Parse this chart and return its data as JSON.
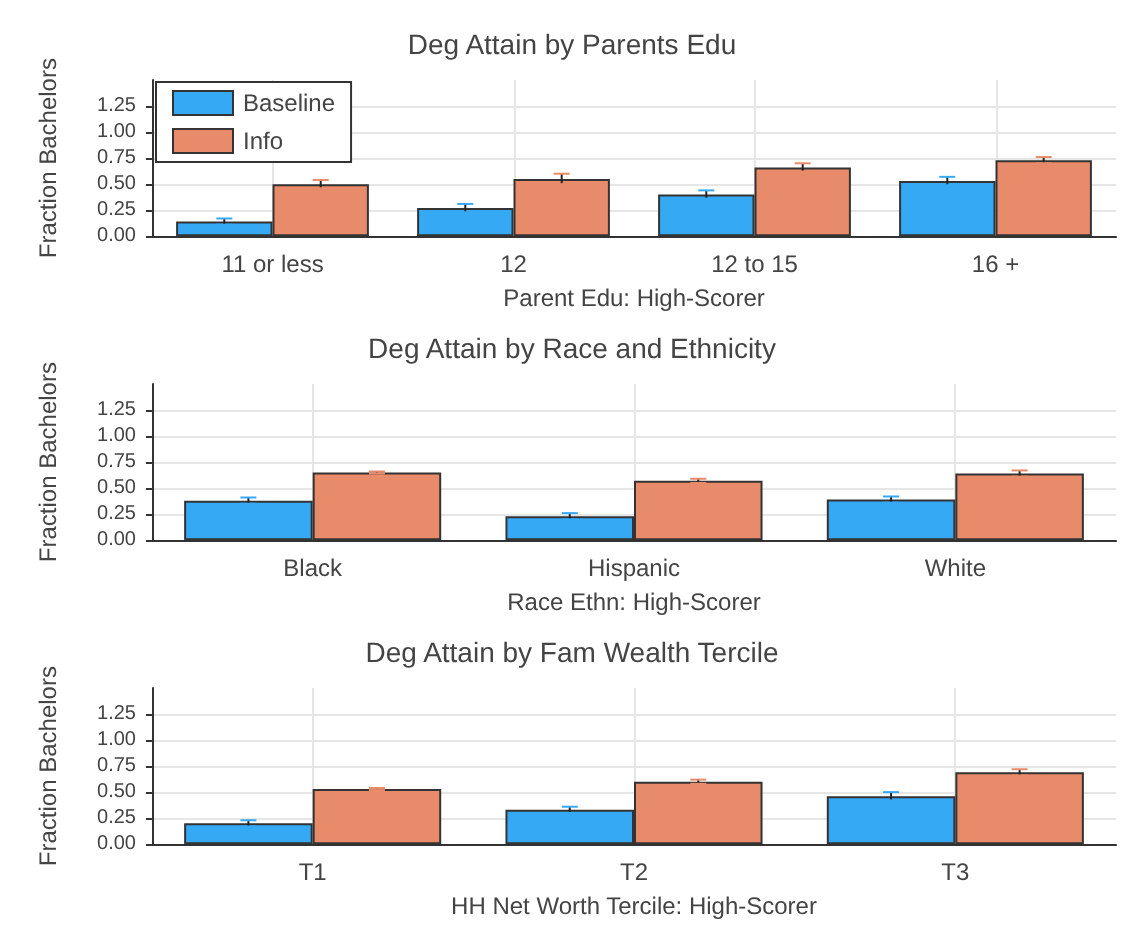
{
  "chart_data": [
    {
      "type": "bar",
      "title": "Deg Attain by Parents Edu",
      "xlabel": "Parent Edu: High-Scorer",
      "ylabel": "Fraction Bachelors",
      "categories": [
        "11 or less",
        "12",
        "12 to 15",
        "16 +"
      ],
      "series": [
        {
          "name": "Baseline",
          "color": "#36a9f5",
          "values": [
            0.14,
            0.27,
            0.4,
            0.53
          ],
          "errors": [
            0.03,
            0.04,
            0.04,
            0.04
          ]
        },
        {
          "name": "Info",
          "color": "#e88b6a",
          "values": [
            0.5,
            0.55,
            0.66,
            0.73
          ],
          "errors": [
            0.04,
            0.05,
            0.04,
            0.03
          ]
        }
      ],
      "ylim": [
        0,
        1.5
      ],
      "yticks": [
        {
          "value": 0,
          "label": "0.00"
        },
        {
          "value": 0.25,
          "label": "0.25"
        },
        {
          "value": 0.5,
          "label": "0.50"
        },
        {
          "value": 0.75,
          "label": "0.75"
        },
        {
          "value": 1,
          "label": "1.00"
        },
        {
          "value": 1.25,
          "label": "1.25"
        }
      ],
      "grid": true,
      "legend": "top left"
    },
    {
      "type": "bar",
      "title": "Deg Attain by Race and Ethnicity",
      "xlabel": "Race Ethn: High-Scorer",
      "ylabel": "Fraction Bachelors",
      "categories": [
        "Black",
        "Hispanic",
        "White"
      ],
      "series": [
        {
          "color": "#36a9f5",
          "values": [
            0.38,
            0.23,
            0.39
          ],
          "errors": [
            0.03,
            0.03,
            0.03
          ]
        },
        {
          "color": "#e88b6a",
          "values": [
            0.65,
            0.57,
            0.64
          ],
          "errors": [
            0.01,
            0.02,
            0.03
          ]
        }
      ],
      "ylim": [
        0,
        1.5
      ],
      "yticks": [
        {
          "value": 0,
          "label": "0.00"
        },
        {
          "value": 0.25,
          "label": "0.25"
        },
        {
          "value": 0.5,
          "label": "0.50"
        },
        {
          "value": 0.75,
          "label": "0.75"
        },
        {
          "value": 1,
          "label": "1.00"
        },
        {
          "value": 1.25,
          "label": "1.25"
        }
      ],
      "grid": true,
      "legend": false
    },
    {
      "type": "bar",
      "title": "Deg Attain by Fam Wealth Tercile",
      "xlabel": "HH Net Worth Tercile: High-Scorer",
      "ylabel": "Fraction Bachelors",
      "categories": [
        "T1",
        "T2",
        "T3"
      ],
      "series": [
        {
          "color": "#36a9f5",
          "values": [
            0.2,
            0.33,
            0.46
          ],
          "errors": [
            0.03,
            0.03,
            0.04
          ]
        },
        {
          "color": "#e88b6a",
          "values": [
            0.53,
            0.6,
            0.69
          ],
          "errors": [
            0.01,
            0.02,
            0.03
          ]
        }
      ],
      "ylim": [
        0,
        1.5
      ],
      "yticks": [
        {
          "value": 0,
          "label": "0.00"
        },
        {
          "value": 0.25,
          "label": "0.25"
        },
        {
          "value": 0.5,
          "label": "0.50"
        },
        {
          "value": 0.75,
          "label": "0.75"
        },
        {
          "value": 1,
          "label": "1.00"
        },
        {
          "value": 1.25,
          "label": "1.25"
        }
      ],
      "grid": true,
      "legend": false
    }
  ]
}
